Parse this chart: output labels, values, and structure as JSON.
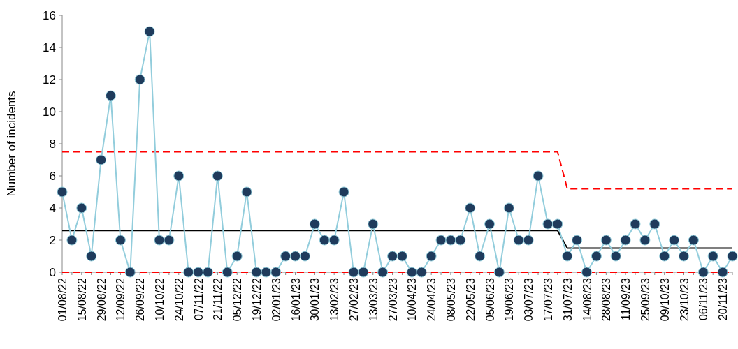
{
  "chart_data": {
    "type": "line",
    "ylabel": "Number of incidents",
    "categories": [
      "01/08/22",
      null,
      "15/08/22",
      null,
      "29/08/22",
      null,
      "12/09/22",
      null,
      "26/09/22",
      null,
      "10/10/22",
      null,
      "24/10/22",
      null,
      "07/11/22",
      null,
      "21/11/22",
      null,
      "05/12/22",
      null,
      "19/12/22",
      null,
      "02/01/23",
      null,
      "16/01/23",
      null,
      "30/01/23",
      null,
      "13/02/23",
      null,
      "27/02/23",
      null,
      "13/03/23",
      null,
      "27/03/23",
      null,
      "10/04/23",
      null,
      "24/04/23",
      null,
      "08/05/23",
      null,
      "22/05/23",
      null,
      "05/06/23",
      null,
      "19/06/23",
      null,
      "03/07/23",
      null,
      "17/07/23",
      null,
      "31/07/23",
      null,
      "14/08/23",
      null,
      "28/08/23",
      null,
      "11/09/23",
      null,
      "25/09/23",
      null,
      "09/10/23",
      null,
      "23/10/23",
      null,
      "06/11/23",
      null,
      "20/11/23",
      null
    ],
    "series": [
      {
        "color": "#92cddc",
        "marker": "circle",
        "line_style": "solid",
        "values": [
          5,
          2,
          4,
          1,
          7,
          11,
          2,
          0,
          12,
          15,
          2,
          2,
          6,
          0,
          0,
          0,
          6,
          0,
          1,
          5,
          0,
          0,
          0,
          1,
          1,
          1,
          3,
          2,
          2,
          5,
          0,
          0,
          3,
          0,
          1,
          1,
          0,
          0,
          1,
          2,
          2,
          2,
          4,
          1,
          3,
          0,
          4,
          2,
          2,
          6,
          3,
          3,
          1,
          2,
          0,
          1,
          2,
          1,
          2,
          3,
          2,
          3,
          1,
          2,
          1,
          2,
          0,
          1,
          0,
          1
        ]
      },
      {
        "color": "#000000",
        "marker": "none",
        "line_style": "solid",
        "values": [
          2.6,
          2.6,
          2.6,
          2.6,
          2.6,
          2.6,
          2.6,
          2.6,
          2.6,
          2.6,
          2.6,
          2.6,
          2.6,
          2.6,
          2.6,
          2.6,
          2.6,
          2.6,
          2.6,
          2.6,
          2.6,
          2.6,
          2.6,
          2.6,
          2.6,
          2.6,
          2.6,
          2.6,
          2.6,
          2.6,
          2.6,
          2.6,
          2.6,
          2.6,
          2.6,
          2.6,
          2.6,
          2.6,
          2.6,
          2.6,
          2.6,
          2.6,
          2.6,
          2.6,
          2.6,
          2.6,
          2.6,
          2.6,
          2.6,
          2.6,
          2.6,
          2.6,
          1.5,
          1.5,
          1.5,
          1.5,
          1.5,
          1.5,
          1.5,
          1.5,
          1.5,
          1.5,
          1.5,
          1.5,
          1.5,
          1.5,
          1.5,
          1.5,
          1.5,
          1.5
        ]
      },
      {
        "color": "#ff0000",
        "marker": "none",
        "line_style": "dashed",
        "values": [
          7.5,
          7.5,
          7.5,
          7.5,
          7.5,
          7.5,
          7.5,
          7.5,
          7.5,
          7.5,
          7.5,
          7.5,
          7.5,
          7.5,
          7.5,
          7.5,
          7.5,
          7.5,
          7.5,
          7.5,
          7.5,
          7.5,
          7.5,
          7.5,
          7.5,
          7.5,
          7.5,
          7.5,
          7.5,
          7.5,
          7.5,
          7.5,
          7.5,
          7.5,
          7.5,
          7.5,
          7.5,
          7.5,
          7.5,
          7.5,
          7.5,
          7.5,
          7.5,
          7.5,
          7.5,
          7.5,
          7.5,
          7.5,
          7.5,
          7.5,
          7.5,
          7.5,
          5.2,
          5.2,
          5.2,
          5.2,
          5.2,
          5.2,
          5.2,
          5.2,
          5.2,
          5.2,
          5.2,
          5.2,
          5.2,
          5.2,
          5.2,
          5.2,
          5.2,
          5.2
        ]
      },
      {
        "color": "#ff0000",
        "marker": "none",
        "line_style": "dashed",
        "values": [
          0,
          0,
          0,
          0,
          0,
          0,
          0,
          0,
          0,
          0,
          0,
          0,
          0,
          0,
          0,
          0,
          0,
          0,
          0,
          0,
          0,
          0,
          0,
          0,
          0,
          0,
          0,
          0,
          0,
          0,
          0,
          0,
          0,
          0,
          0,
          0,
          0,
          0,
          0,
          0,
          0,
          0,
          0,
          0,
          0,
          0,
          0,
          0,
          0,
          0,
          0,
          0,
          0,
          0,
          0,
          0,
          0,
          0,
          0,
          0,
          0,
          0,
          0,
          0,
          0,
          0,
          0,
          0,
          0,
          0
        ]
      }
    ],
    "ylim": [
      0,
      16
    ],
    "yticks": [
      0,
      2,
      4,
      6,
      8,
      10,
      12,
      14,
      16
    ],
    "grid": false
  }
}
